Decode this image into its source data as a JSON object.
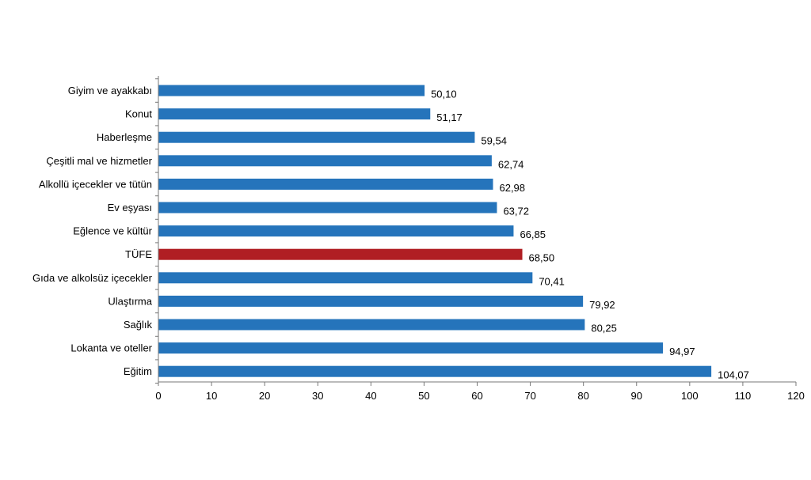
{
  "chart_data": {
    "type": "bar",
    "orientation": "horizontal",
    "categories": [
      "Giyim ve ayakkabı",
      "Konut",
      "Haberleşme",
      "Çeşitli mal ve hizmetler",
      "Alkollü içecekler ve tütün",
      "Ev eşyası",
      "Eğlence ve kültür",
      "TÜFE",
      "Gıda ve alkolsüz içecekler",
      "Ulaştırma",
      "Sağlık",
      "Lokanta ve oteller",
      "Eğitim"
    ],
    "values": [
      50.1,
      51.17,
      59.54,
      62.74,
      62.98,
      63.72,
      66.85,
      68.5,
      70.41,
      79.92,
      80.25,
      94.97,
      104.07
    ],
    "value_labels": [
      "50,10",
      "51,17",
      "59,54",
      "62,74",
      "62,98",
      "63,72",
      "66,85",
      "68,50",
      "70,41",
      "79,92",
      "80,25",
      "94,97",
      "104,07"
    ],
    "highlight_category": "TÜFE",
    "xlim": [
      0,
      120
    ],
    "xticks": [
      0,
      10,
      20,
      30,
      40,
      50,
      60,
      70,
      80,
      90,
      100,
      110,
      120
    ],
    "grid": false,
    "legend": "none",
    "title": "",
    "xlabel": "",
    "ylabel": ""
  },
  "colors": {
    "bar": "#2574BB",
    "bar_highlight": "#B01E23",
    "axis": "#777777"
  }
}
